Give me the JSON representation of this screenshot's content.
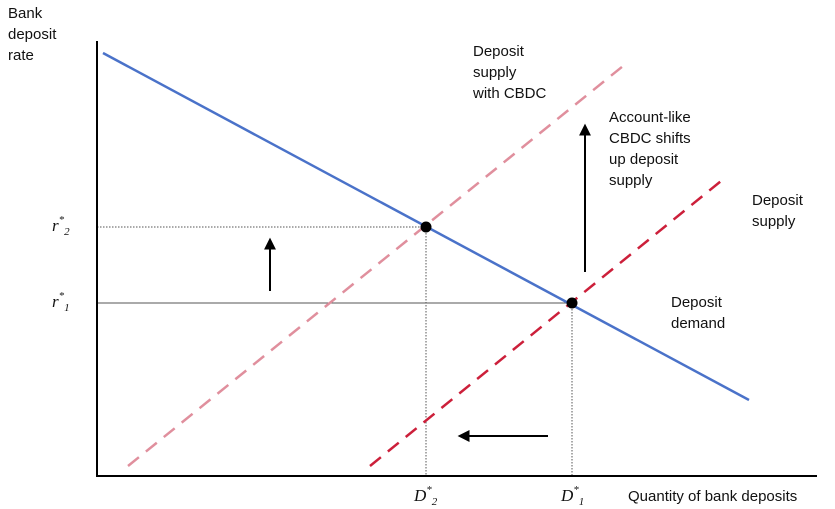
{
  "axes": {
    "y_label_lines": [
      "Bank",
      "deposit",
      "rate"
    ],
    "x_label": "Quantity of bank deposits"
  },
  "ticks": {
    "r2": {
      "base": "r",
      "sub": "2",
      "sup": "*"
    },
    "r1": {
      "base": "r",
      "sub": "1",
      "sup": "*"
    },
    "d2": {
      "base": "D",
      "sub": "2",
      "sup": "*"
    },
    "d1": {
      "base": "D",
      "sub": "1",
      "sup": "*"
    }
  },
  "annotations": {
    "supply_cbdc_lines": [
      "Deposit",
      "supply",
      "with CBDC"
    ],
    "shift_lines": [
      "Account-like",
      "CBDC shifts",
      "up deposit",
      "supply"
    ],
    "supply_lines": [
      "Deposit",
      "supply"
    ],
    "demand_lines": [
      "Deposit",
      "demand"
    ]
  },
  "colors": {
    "demand": "#4a72c9",
    "supply": "#cc1f3a",
    "supply_cbdc": "#e08f9d",
    "axis": "#000000",
    "guide": "#555555"
  },
  "icons": [
    "up-arrow-icon",
    "up-arrow-icon",
    "left-arrow-icon"
  ]
}
